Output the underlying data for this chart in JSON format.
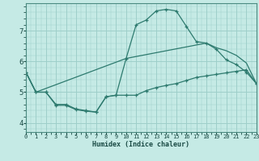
{
  "xlabel": "Humidex (Indice chaleur)",
  "bg_color": "#c5eae5",
  "grid_color": "#9ecfca",
  "line_color": "#2d7a6e",
  "xlim": [
    0,
    23
  ],
  "ylim": [
    3.7,
    7.9
  ],
  "xticks": [
    0,
    1,
    2,
    3,
    4,
    5,
    6,
    7,
    8,
    9,
    10,
    11,
    12,
    13,
    14,
    15,
    16,
    17,
    18,
    19,
    20,
    21,
    22,
    23
  ],
  "yticks": [
    4,
    5,
    6,
    7
  ],
  "line1_only_x": [
    0,
    1,
    2,
    3,
    4,
    5,
    6,
    7,
    8,
    9,
    10,
    11,
    12,
    13,
    14,
    15,
    16,
    17,
    18,
    19,
    20,
    21,
    22,
    23
  ],
  "line1_only_y": [
    5.65,
    5.0,
    5.0,
    4.57,
    4.57,
    4.43,
    4.38,
    4.35,
    4.85,
    4.9,
    4.9,
    4.9,
    5.05,
    5.15,
    5.22,
    5.28,
    5.38,
    5.48,
    5.53,
    5.58,
    5.63,
    5.68,
    5.73,
    5.28
  ],
  "line2_x": [
    0,
    1,
    2,
    3,
    4,
    5,
    6,
    7,
    8,
    9,
    10,
    11,
    12,
    13,
    14,
    15,
    16,
    17,
    18,
    19,
    20,
    21,
    22,
    23
  ],
  "line2_y": [
    5.65,
    5.0,
    5.0,
    4.6,
    4.6,
    4.45,
    4.4,
    4.35,
    4.85,
    4.9,
    6.1,
    7.2,
    7.35,
    7.65,
    7.7,
    7.65,
    7.15,
    6.65,
    6.6,
    6.4,
    6.05,
    5.9,
    5.65,
    5.28
  ],
  "line3_x": [
    0,
    1,
    10,
    18,
    19,
    20,
    21,
    22,
    23
  ],
  "line3_y": [
    5.65,
    5.0,
    6.1,
    6.6,
    6.45,
    6.35,
    6.2,
    5.95,
    5.28
  ]
}
